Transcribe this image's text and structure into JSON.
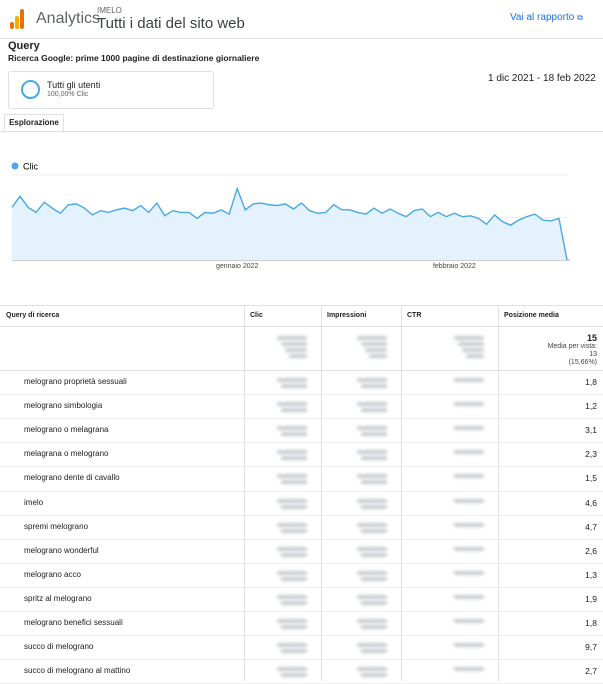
{
  "header": {
    "product": "Analytics",
    "account": "IMELO",
    "property": "Tutti i dati del sito web",
    "link": "Vai al rapporto"
  },
  "report": {
    "title": "Query",
    "subtitle": "Ricerca Google: prime 1000 pagine di destinazione giornaliere",
    "segment": {
      "name": "Tutti gli utenti",
      "detail": "100,00% Clic"
    },
    "date_range": "1 dic 2021 - 18 feb 2022",
    "tab": "Esplorazione"
  },
  "chart": {
    "type": "line",
    "ylim": [
      0,
      100
    ],
    "fill": "#e3f2fc",
    "categories": [
      null,
      null,
      null,
      null,
      null,
      null,
      null,
      null,
      null,
      null,
      null,
      null,
      null,
      null,
      null,
      null,
      null,
      null,
      null,
      null,
      null,
      null,
      null,
      null,
      null,
      null,
      null,
      null,
      "gennaio 2022",
      null,
      null,
      null,
      null,
      null,
      null,
      null,
      null,
      null,
      null,
      null,
      null,
      null,
      null,
      null,
      null,
      null,
      null,
      null,
      null,
      null,
      null,
      null,
      null,
      null,
      null,
      "febbraio 2022",
      null,
      null,
      null,
      null,
      null,
      null,
      null,
      null,
      null,
      null,
      null,
      null,
      null,
      null
    ],
    "series": [
      {
        "name": "Clic",
        "color": "#4aa8e6",
        "values": [
          62,
          75,
          62,
          56,
          68,
          61,
          55,
          65,
          66,
          61,
          53,
          58,
          56,
          59,
          61,
          58,
          64,
          56,
          67,
          52,
          58,
          56,
          56,
          49,
          56,
          55,
          59,
          54,
          84,
          59,
          66,
          67,
          65,
          64,
          66,
          60,
          67,
          58,
          55,
          56,
          65,
          59,
          59,
          56,
          54,
          61,
          55,
          60,
          55,
          51,
          58,
          60,
          51,
          56,
          51,
          55,
          51,
          52,
          49,
          42,
          53,
          45,
          41,
          47,
          51,
          54,
          47,
          46,
          49,
          0
        ]
      }
    ]
  },
  "table": {
    "columns": [
      "Query di ricerca",
      "Clic",
      "Impressioni",
      "CTR",
      "Posizione media"
    ],
    "total": {
      "position": "15",
      "note": "Media per vista:",
      "average": "13",
      "share": "(15,66%)"
    },
    "rows": [
      [
        "melograno proprietà sessuali",
        "1,8"
      ],
      [
        "melograno simbologia",
        "1,2"
      ],
      [
        "melograno o melagrana",
        "3,1"
      ],
      [
        "melagrana o melograno",
        "2,3"
      ],
      [
        "melograno dente di cavallo",
        "1,5"
      ],
      [
        "imelo",
        "4,6"
      ],
      [
        "spremi melograno",
        "4,7"
      ],
      [
        "melograno wonderful",
        "2,6"
      ],
      [
        "melograno acco",
        "1,3"
      ],
      [
        "spritz al melograno",
        "1,9"
      ],
      [
        "melograno benefici sessuali",
        "1,8"
      ],
      [
        "succo di melograno",
        "9,7"
      ],
      [
        "succo di melograno al mattino",
        "2,7"
      ]
    ]
  }
}
